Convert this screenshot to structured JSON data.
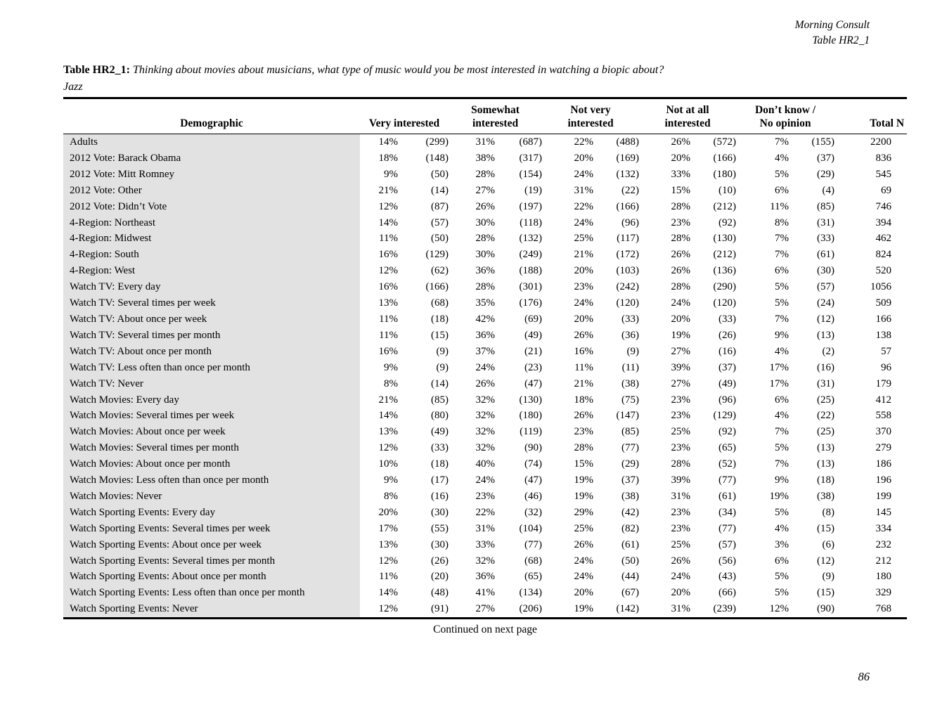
{
  "page_header": {
    "brand": "Morning Consult",
    "table_ref": "Table HR2_1"
  },
  "title": {
    "label": "Table HR2_1:",
    "question": "Thinking about movies about musicians, what type of music would you be most interested in watching a biopic about?",
    "subject": "Jazz"
  },
  "table": {
    "columns": {
      "demographic": "Demographic",
      "groups": [
        {
          "top": "",
          "bottom": "Very interested"
        },
        {
          "top": "Somewhat",
          "bottom": "interested"
        },
        {
          "top": "Not very",
          "bottom": "interested"
        },
        {
          "top": "Not at all",
          "bottom": "interested"
        },
        {
          "top": "Don’t know /",
          "bottom": "No opinion"
        }
      ],
      "total": "Total N"
    },
    "rows": [
      {
        "label": "Adults",
        "values": [
          "14%",
          "(299)",
          "31%",
          "(687)",
          "22%",
          "(488)",
          "26%",
          "(572)",
          "7%",
          "(155)",
          "2200"
        ]
      },
      {
        "label": "2012 Vote: Barack Obama",
        "values": [
          "18%",
          "(148)",
          "38%",
          "(317)",
          "20%",
          "(169)",
          "20%",
          "(166)",
          "4%",
          "(37)",
          "836"
        ]
      },
      {
        "label": "2012 Vote: Mitt Romney",
        "values": [
          "9%",
          "(50)",
          "28%",
          "(154)",
          "24%",
          "(132)",
          "33%",
          "(180)",
          "5%",
          "(29)",
          "545"
        ]
      },
      {
        "label": "2012 Vote: Other",
        "values": [
          "21%",
          "(14)",
          "27%",
          "(19)",
          "31%",
          "(22)",
          "15%",
          "(10)",
          "6%",
          "(4)",
          "69"
        ]
      },
      {
        "label": "2012 Vote: Didn’t Vote",
        "values": [
          "12%",
          "(87)",
          "26%",
          "(197)",
          "22%",
          "(166)",
          "28%",
          "(212)",
          "11%",
          "(85)",
          "746"
        ]
      },
      {
        "label": "4-Region: Northeast",
        "values": [
          "14%",
          "(57)",
          "30%",
          "(118)",
          "24%",
          "(96)",
          "23%",
          "(92)",
          "8%",
          "(31)",
          "394"
        ]
      },
      {
        "label": "4-Region: Midwest",
        "values": [
          "11%",
          "(50)",
          "28%",
          "(132)",
          "25%",
          "(117)",
          "28%",
          "(130)",
          "7%",
          "(33)",
          "462"
        ]
      },
      {
        "label": "4-Region: South",
        "values": [
          "16%",
          "(129)",
          "30%",
          "(249)",
          "21%",
          "(172)",
          "26%",
          "(212)",
          "7%",
          "(61)",
          "824"
        ]
      },
      {
        "label": "4-Region: West",
        "values": [
          "12%",
          "(62)",
          "36%",
          "(188)",
          "20%",
          "(103)",
          "26%",
          "(136)",
          "6%",
          "(30)",
          "520"
        ]
      },
      {
        "label": "Watch TV: Every day",
        "values": [
          "16%",
          "(166)",
          "28%",
          "(301)",
          "23%",
          "(242)",
          "28%",
          "(290)",
          "5%",
          "(57)",
          "1056"
        ]
      },
      {
        "label": "Watch TV: Several times per week",
        "values": [
          "13%",
          "(68)",
          "35%",
          "(176)",
          "24%",
          "(120)",
          "24%",
          "(120)",
          "5%",
          "(24)",
          "509"
        ]
      },
      {
        "label": "Watch TV: About once per week",
        "values": [
          "11%",
          "(18)",
          "42%",
          "(69)",
          "20%",
          "(33)",
          "20%",
          "(33)",
          "7%",
          "(12)",
          "166"
        ]
      },
      {
        "label": "Watch TV: Several times per month",
        "values": [
          "11%",
          "(15)",
          "36%",
          "(49)",
          "26%",
          "(36)",
          "19%",
          "(26)",
          "9%",
          "(13)",
          "138"
        ]
      },
      {
        "label": "Watch TV: About once per month",
        "values": [
          "16%",
          "(9)",
          "37%",
          "(21)",
          "16%",
          "(9)",
          "27%",
          "(16)",
          "4%",
          "(2)",
          "57"
        ]
      },
      {
        "label": "Watch TV: Less often than once per month",
        "values": [
          "9%",
          "(9)",
          "24%",
          "(23)",
          "11%",
          "(11)",
          "39%",
          "(37)",
          "17%",
          "(16)",
          "96"
        ]
      },
      {
        "label": "Watch TV: Never",
        "values": [
          "8%",
          "(14)",
          "26%",
          "(47)",
          "21%",
          "(38)",
          "27%",
          "(49)",
          "17%",
          "(31)",
          "179"
        ]
      },
      {
        "label": "Watch Movies: Every day",
        "values": [
          "21%",
          "(85)",
          "32%",
          "(130)",
          "18%",
          "(75)",
          "23%",
          "(96)",
          "6%",
          "(25)",
          "412"
        ]
      },
      {
        "label": "Watch Movies: Several times per week",
        "values": [
          "14%",
          "(80)",
          "32%",
          "(180)",
          "26%",
          "(147)",
          "23%",
          "(129)",
          "4%",
          "(22)",
          "558"
        ]
      },
      {
        "label": "Watch Movies: About once per week",
        "values": [
          "13%",
          "(49)",
          "32%",
          "(119)",
          "23%",
          "(85)",
          "25%",
          "(92)",
          "7%",
          "(25)",
          "370"
        ]
      },
      {
        "label": "Watch Movies: Several times per month",
        "values": [
          "12%",
          "(33)",
          "32%",
          "(90)",
          "28%",
          "(77)",
          "23%",
          "(65)",
          "5%",
          "(13)",
          "279"
        ]
      },
      {
        "label": "Watch Movies: About once per month",
        "values": [
          "10%",
          "(18)",
          "40%",
          "(74)",
          "15%",
          "(29)",
          "28%",
          "(52)",
          "7%",
          "(13)",
          "186"
        ]
      },
      {
        "label": "Watch Movies: Less often than once per month",
        "values": [
          "9%",
          "(17)",
          "24%",
          "(47)",
          "19%",
          "(37)",
          "39%",
          "(77)",
          "9%",
          "(18)",
          "196"
        ]
      },
      {
        "label": "Watch Movies: Never",
        "values": [
          "8%",
          "(16)",
          "23%",
          "(46)",
          "19%",
          "(38)",
          "31%",
          "(61)",
          "19%",
          "(38)",
          "199"
        ]
      },
      {
        "label": "Watch Sporting Events: Every day",
        "values": [
          "20%",
          "(30)",
          "22%",
          "(32)",
          "29%",
          "(42)",
          "23%",
          "(34)",
          "5%",
          "(8)",
          "145"
        ]
      },
      {
        "label": "Watch Sporting Events: Several times per week",
        "values": [
          "17%",
          "(55)",
          "31%",
          "(104)",
          "25%",
          "(82)",
          "23%",
          "(77)",
          "4%",
          "(15)",
          "334"
        ]
      },
      {
        "label": "Watch Sporting Events: About once per week",
        "values": [
          "13%",
          "(30)",
          "33%",
          "(77)",
          "26%",
          "(61)",
          "25%",
          "(57)",
          "3%",
          "(6)",
          "232"
        ]
      },
      {
        "label": "Watch Sporting Events: Several times per month",
        "values": [
          "12%",
          "(26)",
          "32%",
          "(68)",
          "24%",
          "(50)",
          "26%",
          "(56)",
          "6%",
          "(12)",
          "212"
        ]
      },
      {
        "label": "Watch Sporting Events: About once per month",
        "values": [
          "11%",
          "(20)",
          "36%",
          "(65)",
          "24%",
          "(44)",
          "24%",
          "(43)",
          "5%",
          "(9)",
          "180"
        ]
      },
      {
        "label": "Watch Sporting Events: Less often than once per month",
        "values": [
          "14%",
          "(48)",
          "41%",
          "(134)",
          "20%",
          "(67)",
          "20%",
          "(66)",
          "5%",
          "(15)",
          "329"
        ]
      },
      {
        "label": "Watch Sporting Events: Never",
        "values": [
          "12%",
          "(91)",
          "27%",
          "(206)",
          "19%",
          "(142)",
          "31%",
          "(239)",
          "12%",
          "(90)",
          "768"
        ]
      }
    ]
  },
  "footer": {
    "continued": "Continued on next page",
    "page_number": "86"
  }
}
